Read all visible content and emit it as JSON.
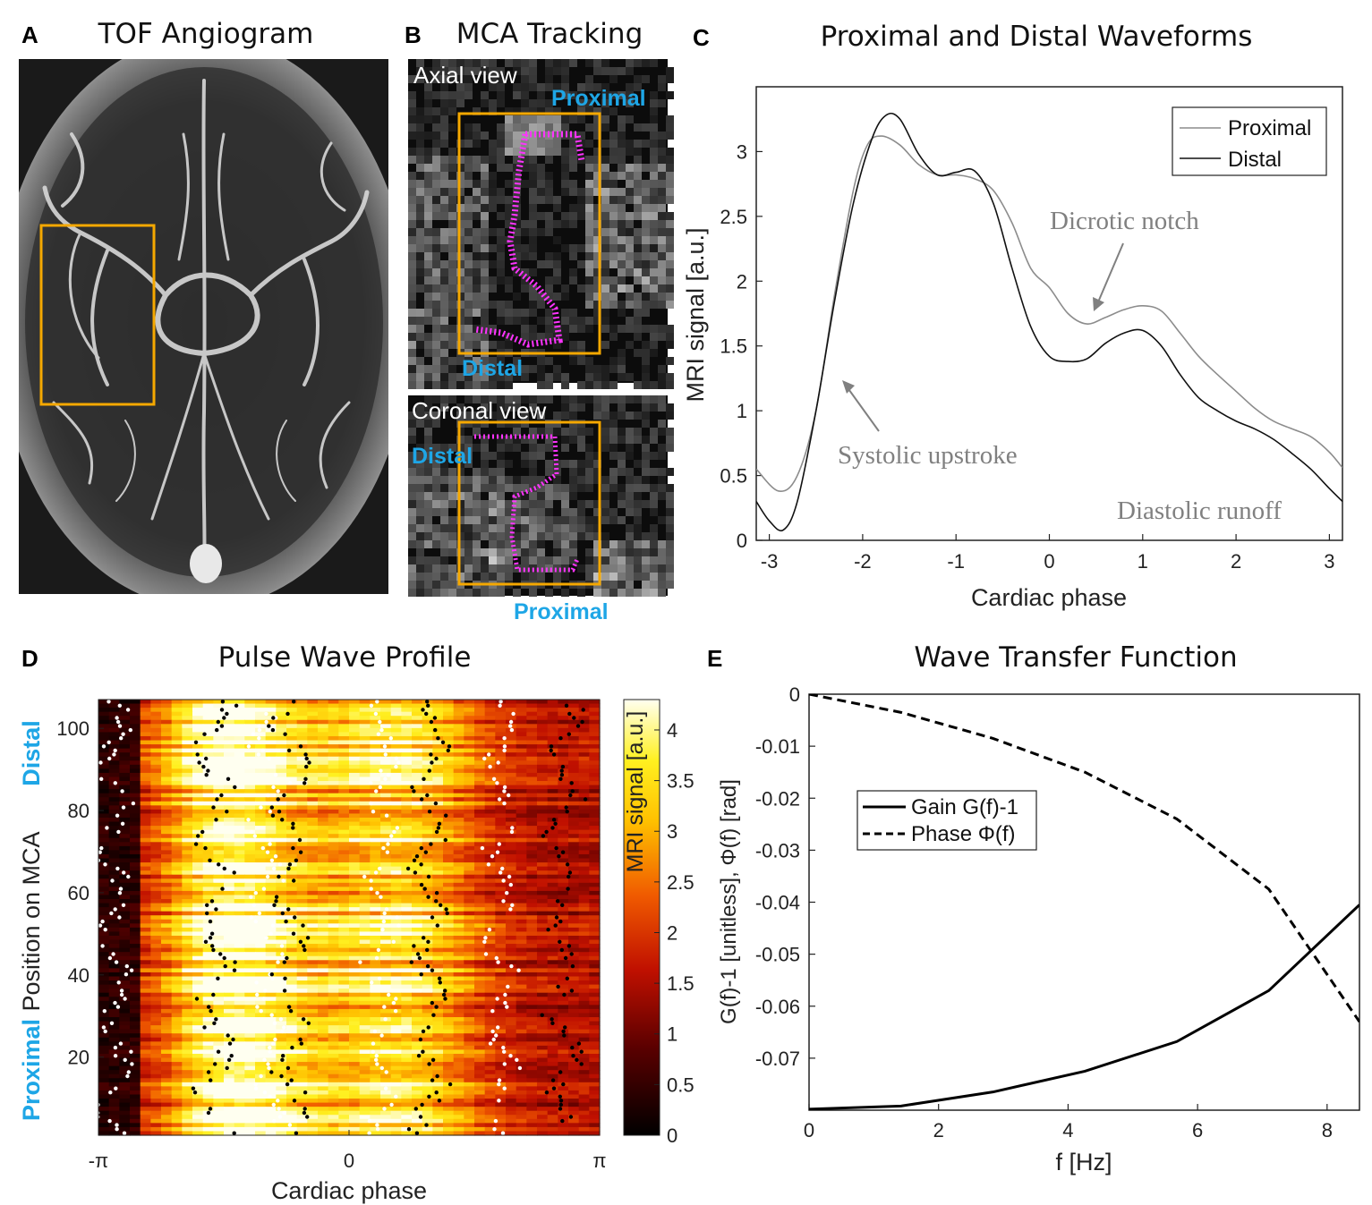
{
  "panels": {
    "A": {
      "letter": "A",
      "title": "TOF Angiogram"
    },
    "B": {
      "letter": "B",
      "title": "MCA Tracking",
      "axial_label": "Axial view",
      "coronal_label": "Coronal view",
      "proximal": "Proximal",
      "distal": "Distal",
      "accent": "#ff33ff",
      "box_color": "#f5a800",
      "label_color": "#1ea6e6"
    },
    "C": {
      "letter": "C",
      "title": "Proximal and Distal Waveforms"
    },
    "D": {
      "letter": "D",
      "title": "Pulse Wave Profile",
      "side_distal": "Distal",
      "side_proximal": "Proximal"
    },
    "E": {
      "letter": "E",
      "title": "Wave Transfer Function"
    }
  },
  "chart_data": [
    {
      "id": "C",
      "type": "line",
      "title": "Proximal and Distal Waveforms",
      "xlabel": "Cardiac phase",
      "ylabel": "MRI signal [a.u.]",
      "xlim": [
        -3.14,
        3.14
      ],
      "ylim": [
        0,
        3.5
      ],
      "xticks": [
        -3,
        -2,
        -1,
        0,
        1,
        2,
        3
      ],
      "yticks": [
        0,
        0.5,
        1,
        1.5,
        2,
        2.5,
        3
      ],
      "legend": [
        "Proximal",
        "Distal"
      ],
      "legend_position": "top-right",
      "series": [
        {
          "name": "Proximal",
          "color": "#8c8c8c",
          "x": [
            -3.14,
            -2.9,
            -2.7,
            -2.5,
            -2.3,
            -2.1,
            -1.95,
            -1.8,
            -1.6,
            -1.4,
            -1.2,
            -1.0,
            -0.8,
            -0.6,
            -0.4,
            -0.2,
            0.0,
            0.2,
            0.4,
            0.6,
            0.8,
            1.0,
            1.2,
            1.4,
            1.6,
            1.8,
            2.0,
            2.2,
            2.4,
            2.6,
            2.8,
            3.0,
            3.14
          ],
          "y": [
            0.55,
            0.38,
            0.5,
            1.0,
            1.9,
            2.7,
            3.05,
            3.12,
            3.05,
            2.9,
            2.82,
            2.82,
            2.79,
            2.7,
            2.45,
            2.1,
            1.95,
            1.75,
            1.67,
            1.72,
            1.78,
            1.81,
            1.77,
            1.6,
            1.42,
            1.28,
            1.15,
            1.02,
            0.92,
            0.86,
            0.8,
            0.68,
            0.56
          ]
        },
        {
          "name": "Distal",
          "color": "#111111",
          "x": [
            -3.14,
            -3.0,
            -2.85,
            -2.7,
            -2.5,
            -2.3,
            -2.1,
            -1.9,
            -1.75,
            -1.6,
            -1.4,
            -1.2,
            -1.0,
            -0.8,
            -0.6,
            -0.4,
            -0.2,
            0.0,
            0.2,
            0.4,
            0.6,
            0.8,
            1.0,
            1.2,
            1.4,
            1.6,
            1.8,
            2.0,
            2.2,
            2.4,
            2.6,
            2.8,
            3.0,
            3.14
          ],
          "y": [
            0.3,
            0.15,
            0.08,
            0.3,
            1.0,
            1.85,
            2.6,
            3.1,
            3.28,
            3.25,
            2.98,
            2.82,
            2.84,
            2.85,
            2.6,
            2.1,
            1.65,
            1.42,
            1.38,
            1.4,
            1.52,
            1.6,
            1.62,
            1.5,
            1.28,
            1.1,
            1.0,
            0.92,
            0.86,
            0.78,
            0.67,
            0.55,
            0.4,
            0.3
          ]
        }
      ],
      "annotations": [
        "Dicrotic notch",
        "Systolic upstroke",
        "Diastolic runoff"
      ]
    },
    {
      "id": "D",
      "type": "heatmap",
      "title": "Pulse Wave Profile",
      "xlabel": "Cardiac phase",
      "ylabel": "Position on MCA",
      "xticks": [
        "-π",
        "0",
        "π"
      ],
      "yticks": [
        20,
        40,
        60,
        80,
        100
      ],
      "ylim": [
        1,
        107
      ],
      "colorbar_label": "MRI signal [a.u.]",
      "colorbar_ticks": [
        0,
        0.5,
        1,
        1.5,
        2,
        2.5,
        3,
        3.5,
        4
      ],
      "colorbar_lim": [
        0,
        4.3
      ]
    },
    {
      "id": "E",
      "type": "line",
      "title": "Wave Transfer Function",
      "xlabel": "f [Hz]",
      "ylabel": "G(f)-1 [unitless], Φ(f) [rad]",
      "xlim": [
        0,
        8.5
      ],
      "ylim": [
        -0.08,
        0
      ],
      "xticks": [
        0,
        2,
        4,
        6,
        8
      ],
      "yticks": [
        "0",
        "-0.01",
        "-0.02",
        "-0.03",
        "-0.04",
        "-0.05",
        "-0.06",
        "-0.07"
      ],
      "legend": [
        "Gain G(f)-1",
        "Phase Φ(f)"
      ],
      "legend_position": "upper-left",
      "series": [
        {
          "name": "Gain G(f)-1",
          "style": "solid",
          "x": [
            0,
            1.42,
            2.84,
            4.26,
            5.68,
            7.1,
            8.5
          ],
          "y": [
            -0.0798,
            -0.0792,
            -0.0765,
            -0.0725,
            -0.0668,
            -0.057,
            -0.0405
          ]
        },
        {
          "name": "Phase Φ(f)",
          "style": "dashed",
          "x": [
            0,
            1.42,
            2.84,
            4.26,
            5.68,
            7.1,
            8.5
          ],
          "y": [
            0,
            -0.0035,
            -0.0085,
            -0.015,
            -0.024,
            -0.0375,
            -0.063
          ]
        }
      ]
    }
  ]
}
